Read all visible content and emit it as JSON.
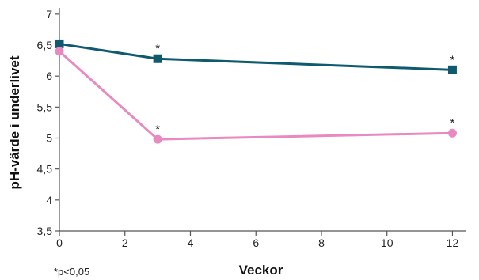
{
  "chart_data": {
    "type": "line",
    "xlabel": "Veckor",
    "ylabel": "pH-värde i underlivet",
    "xlim": [
      0,
      12.4
    ],
    "ylim": [
      3.5,
      7.1
    ],
    "x_ticks": [
      0,
      2,
      4,
      6,
      8,
      10,
      12
    ],
    "y_ticks": [
      3.5,
      4,
      4.5,
      5,
      5.5,
      6,
      6.5,
      7
    ],
    "y_tick_labels": [
      "3,5",
      "4",
      "4,5",
      "5",
      "5,5",
      "6",
      "6,5",
      "7"
    ],
    "grid": false,
    "legend": "none",
    "series": [
      {
        "color": "#0f5a6e",
        "marker": "square",
        "x": [
          0,
          3,
          12
        ],
        "y": [
          6.52,
          6.28,
          6.1
        ],
        "annotations": [
          "",
          "*",
          "*"
        ]
      },
      {
        "color": "#e889bf",
        "marker": "circle",
        "x": [
          0,
          3,
          12
        ],
        "y": [
          6.4,
          4.98,
          5.08
        ],
        "annotations": [
          "",
          "*",
          "*"
        ]
      }
    ],
    "footnote": "*p<0,05"
  }
}
